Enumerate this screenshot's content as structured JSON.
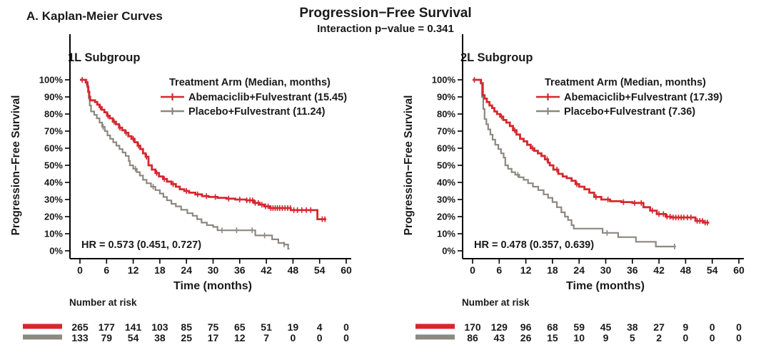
{
  "header": {
    "panel_label": "A. Kaplan-Meier Curves",
    "title": "Progression−Free Survival",
    "subtitle": "Interaction p−value = 0.341"
  },
  "colors": {
    "abemaciclib": "#d6272e",
    "placebo": "#8d8880",
    "text": "#1a1a1a",
    "axis": "#000000"
  },
  "chart_data": {
    "type": "line",
    "subtype": "kaplan-meier-step",
    "xlabel": "Time (months)",
    "ylabel": "Progression−Free Survival",
    "x_ticks": [
      0,
      6,
      12,
      18,
      24,
      30,
      36,
      42,
      48,
      54,
      60
    ],
    "y_tick_labels": [
      "100%",
      "90%",
      "80%",
      "70%",
      "60%",
      "50%",
      "40%",
      "30%",
      "20%",
      "10%",
      "0%"
    ],
    "y_tick_pcts": [
      100,
      90,
      80,
      70,
      60,
      50,
      40,
      30,
      20,
      10,
      0
    ],
    "xlim": [
      0,
      60
    ],
    "ylim_pct": [
      0,
      100
    ],
    "grid": false,
    "legend_position": "top-right-inside",
    "panels": [
      {
        "title": "1L Subgroup",
        "legend_title": "Treatment Arm (Median, months)",
        "legend_x": 237,
        "hr_text": "HR = 0.573 (0.451, 0.727)",
        "risk_label": "Number at risk",
        "series": [
          {
            "name": "Abemaciclib+Fulvestrant",
            "median_months": 15.45,
            "legend_label": "Abemaciclib+Fulvestrant (15.45)",
            "color_key": "abemaciclib",
            "steps": [
              [
                0,
                100
              ],
              [
                1.3,
                98.5
              ],
              [
                1.7,
                96
              ],
              [
                1.9,
                93
              ],
              [
                2.1,
                90
              ],
              [
                2.3,
                88
              ],
              [
                3.4,
                87
              ],
              [
                3.9,
                85.5
              ],
              [
                4.4,
                84
              ],
              [
                4.9,
                82.5
              ],
              [
                5.5,
                81
              ],
              [
                6.1,
                79
              ],
              [
                6.7,
                77.5
              ],
              [
                7.4,
                75.5
              ],
              [
                8.1,
                74
              ],
              [
                8.8,
                72
              ],
              [
                9.5,
                70.5
              ],
              [
                10.2,
                69
              ],
              [
                10.9,
                67
              ],
              [
                11.6,
                65.5
              ],
              [
                12.3,
                63.5
              ],
              [
                13,
                61.5
              ],
              [
                13.6,
                59.5
              ],
              [
                14.2,
                57
              ],
              [
                14.8,
                55
              ],
              [
                15.45,
                50
              ],
              [
                16.2,
                47.5
              ],
              [
                17,
                45.5
              ],
              [
                17.8,
                43.5
              ],
              [
                18.7,
                42
              ],
              [
                19.6,
                40.5
              ],
              [
                20.6,
                39
              ],
              [
                21.6,
                37.5
              ],
              [
                22.5,
                36
              ],
              [
                23.5,
                35
              ],
              [
                24.6,
                34
              ],
              [
                26,
                33
              ],
              [
                27.5,
                32
              ],
              [
                29,
                31.5
              ],
              [
                31,
                31
              ],
              [
                33,
                30.5
              ],
              [
                35,
                30
              ],
              [
                37.5,
                29.5
              ],
              [
                39.2,
                28
              ],
              [
                40.5,
                27
              ],
              [
                41.5,
                26
              ],
              [
                42.8,
                25
              ],
              [
                47.5,
                23.8
              ],
              [
                53.5,
                18.5
              ],
              [
                55.5,
                18.5
              ]
            ],
            "censors": [
              0.5,
              4.6,
              6.3,
              7.7,
              9.0,
              10.4,
              12.0,
              13.2,
              15.0,
              17.3,
              19.0,
              21.0,
              24.0,
              26.5,
              28.5,
              30.5,
              33.5,
              36.0,
              37.6,
              38.3,
              38.9,
              39.5,
              40.2,
              41.0,
              41.8,
              42.4,
              43.0,
              43.5,
              44.0,
              44.5,
              45.0,
              45.6,
              46.2,
              46.8,
              47.4,
              48.2,
              49.0,
              50.0,
              51.0,
              52.0,
              54.6,
              55.2
            ],
            "risk_values": [
              265,
              177,
              141,
              103,
              85,
              75,
              65,
              51,
              19,
              4,
              0
            ]
          },
          {
            "name": "Placebo+Fulvestrant",
            "median_months": 11.24,
            "legend_label": "Placebo+Fulvestrant (11.24)",
            "color_key": "placebo",
            "steps": [
              [
                0,
                100
              ],
              [
                1.5,
                97
              ],
              [
                1.8,
                93
              ],
              [
                2.0,
                89
              ],
              [
                2.2,
                85
              ],
              [
                2.5,
                81.5
              ],
              [
                3.2,
                79.5
              ],
              [
                3.8,
                77.5
              ],
              [
                4.4,
                75
              ],
              [
                5.0,
                72.5
              ],
              [
                5.6,
                70
              ],
              [
                6.2,
                67.5
              ],
              [
                6.8,
                65.5
              ],
              [
                7.5,
                63.5
              ],
              [
                8.2,
                61.5
              ],
              [
                8.9,
                59.5
              ],
              [
                9.6,
                57.5
              ],
              [
                10.3,
                55.5
              ],
              [
                11.0,
                52.5
              ],
              [
                11.24,
                50
              ],
              [
                12.0,
                48
              ],
              [
                12.8,
                46
              ],
              [
                13.5,
                44
              ],
              [
                14.2,
                41.5
              ],
              [
                15.0,
                39.5
              ],
              [
                16.0,
                37.5
              ],
              [
                17.0,
                35.5
              ],
              [
                18.0,
                33.5
              ],
              [
                18.8,
                31.5
              ],
              [
                19.6,
                29.5
              ],
              [
                20.6,
                27.5
              ],
              [
                21.6,
                26
              ],
              [
                22.8,
                24
              ],
              [
                24.2,
                22
              ],
              [
                25.4,
                20.5
              ],
              [
                26.4,
                18.5
              ],
              [
                27.4,
                16.5
              ],
              [
                28.6,
                15
              ],
              [
                30.0,
                14
              ],
              [
                31.0,
                12
              ],
              [
                39.5,
                9
              ],
              [
                43.3,
                6.7
              ],
              [
                44.7,
                4.6
              ],
              [
                46.0,
                3.7
              ],
              [
                46.9,
                1.2
              ],
              [
                47.2,
                1.2
              ]
            ],
            "censors": [
              5.2,
              12.5,
              16.5,
              32.0,
              35.3,
              38.8,
              41.6,
              46.0
            ],
            "risk_values": [
              133,
              79,
              54,
              38,
              25,
              17,
              12,
              7,
              0,
              0,
              0
            ]
          }
        ]
      },
      {
        "title": "2L Subgroup",
        "legend_title": "Treatment Arm (Median, months)",
        "legend_x": 213,
        "hr_text": "HR = 0.478 (0.357, 0.639)",
        "risk_label": "Number at risk",
        "series": [
          {
            "name": "Abemaciclib+Fulvestrant",
            "median_months": 17.39,
            "legend_label": "Abemaciclib+Fulvestrant (17.39)",
            "color_key": "abemaciclib",
            "steps": [
              [
                0,
                100
              ],
              [
                1.9,
                98
              ],
              [
                2.3,
                91
              ],
              [
                2.7,
                89
              ],
              [
                3.2,
                87
              ],
              [
                3.8,
                85
              ],
              [
                4.4,
                83.5
              ],
              [
                4.9,
                81.5
              ],
              [
                5.5,
                80
              ],
              [
                6.2,
                78.5
              ],
              [
                6.9,
                76.5
              ],
              [
                7.6,
                75
              ],
              [
                8.4,
                73
              ],
              [
                9.1,
                70.5
              ],
              [
                9.9,
                68
              ],
              [
                10.7,
                65.5
              ],
              [
                11.5,
                64
              ],
              [
                12.3,
                62
              ],
              [
                13.1,
                60
              ],
              [
                13.9,
                58.5
              ],
              [
                14.7,
                57
              ],
              [
                15.5,
                55.5
              ],
              [
                16.3,
                53.5
              ],
              [
                17.0,
                51.5
              ],
              [
                17.39,
                50
              ],
              [
                18.2,
                47.5
              ],
              [
                19.3,
                45
              ],
              [
                20.3,
                43.5
              ],
              [
                21.2,
                42.5
              ],
              [
                22.3,
                41
              ],
              [
                23.2,
                39
              ],
              [
                24.0,
                37.5
              ],
              [
                25.2,
                36
              ],
              [
                26.3,
                34
              ],
              [
                27.4,
                31.5
              ],
              [
                29.0,
                30
              ],
              [
                31.0,
                29
              ],
              [
                33.5,
                28.5
              ],
              [
                36.0,
                28
              ],
              [
                38.5,
                25.5
              ],
              [
                40.0,
                23.5
              ],
              [
                41.5,
                21.5
              ],
              [
                43.5,
                20
              ],
              [
                44.8,
                19.5
              ],
              [
                50.2,
                17.5
              ],
              [
                52.0,
                16.5
              ],
              [
                53.3,
                16.5
              ]
            ],
            "censors": [
              0.4,
              6.5,
              9.5,
              13.5,
              16.8,
              19.0,
              23.5,
              27.8,
              30.5,
              34.0,
              36.5,
              38.0,
              40.5,
              42.0,
              43.0,
              43.8,
              44.5,
              45.2,
              45.8,
              46.4,
              47.0,
              47.6,
              48.4,
              49.2,
              50.6,
              51.2,
              51.8,
              52.4,
              52.9
            ],
            "risk_values": [
              170,
              129,
              96,
              68,
              59,
              45,
              38,
              27,
              9,
              0,
              0
            ]
          },
          {
            "name": "Placebo+Fulvestrant",
            "median_months": 7.36,
            "legend_label": "Placebo+Fulvestrant (7.36)",
            "color_key": "placebo",
            "steps": [
              [
                0,
                100
              ],
              [
                1.8,
                98
              ],
              [
                2.1,
                90
              ],
              [
                2.4,
                83
              ],
              [
                2.7,
                77
              ],
              [
                3.1,
                74
              ],
              [
                3.5,
                71
              ],
              [
                4.0,
                68
              ],
              [
                4.5,
                65
              ],
              [
                5.1,
                62
              ],
              [
                5.8,
                59.5
              ],
              [
                6.4,
                57
              ],
              [
                7.0,
                54.5
              ],
              [
                7.36,
                50
              ],
              [
                8.0,
                48
              ],
              [
                8.8,
                46
              ],
              [
                9.6,
                44.5
              ],
              [
                10.5,
                43
              ],
              [
                11.5,
                41.5
              ],
              [
                12.5,
                39.5
              ],
              [
                13.6,
                37.5
              ],
              [
                14.8,
                35.5
              ],
              [
                16.0,
                33
              ],
              [
                17.0,
                31
              ],
              [
                18.0,
                28.5
              ],
              [
                19.0,
                25.5
              ],
              [
                20.0,
                22.5
              ],
              [
                20.8,
                20
              ],
              [
                21.5,
                18
              ],
              [
                22.3,
                15
              ],
              [
                22.8,
                13
              ],
              [
                29.3,
                10.5
              ],
              [
                32.8,
                8
              ],
              [
                36.8,
                5.3
              ],
              [
                41.3,
                2.5
              ],
              [
                45.8,
                2.5
              ]
            ],
            "censors": [
              10.2,
              30.3,
              45.5
            ],
            "risk_values": [
              86,
              43,
              26,
              15,
              10,
              9,
              5,
              2,
              0,
              0,
              0
            ]
          }
        ]
      }
    ]
  }
}
